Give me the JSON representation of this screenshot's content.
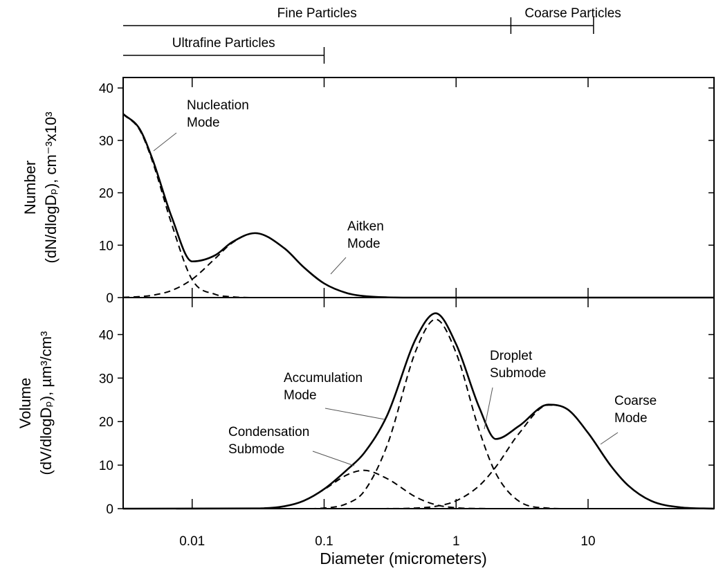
{
  "chart_data": [
    {
      "type": "line",
      "xscale": "log",
      "xlim": [
        0.003,
        90
      ],
      "ylim": [
        0,
        42
      ],
      "xticks": [
        0.01,
        0.1,
        1,
        10
      ],
      "yticks": [
        0,
        10,
        20,
        30,
        40
      ],
      "xtick_labels": false,
      "ylabel": [
        "Number",
        "(dN/dlogDₚ), cm⁻³x10³"
      ],
      "size_ranges": [
        {
          "label": "Fine Particles",
          "range": [
            0.003,
            2.6
          ]
        },
        {
          "label": "Coarse Particles",
          "range": [
            2.6,
            11
          ]
        },
        {
          "label": "Ultrafine Particles",
          "range": [
            0.003,
            0.1
          ]
        }
      ],
      "x": [
        0.003,
        0.004,
        0.005,
        0.007,
        0.01,
        0.015,
        0.02,
        0.03,
        0.05,
        0.07,
        0.1,
        0.15,
        0.2,
        0.3,
        0.5,
        1,
        90
      ],
      "series": [
        {
          "color": "#000000",
          "style": "solid",
          "values": [
            35.05,
            32.18,
            26.44,
            15.36,
            6.9,
            8.1,
            10.55,
            12.3,
            9.4,
            5.8,
            2.7,
            0.83,
            0.29,
            0.05,
            0,
            0,
            0
          ]
        },
        {
          "color": "#000000",
          "style": "dashed",
          "values": [
            35,
            32,
            26,
            14,
            3.4,
            0.6,
            0.15,
            0,
            0,
            0,
            0,
            0,
            0,
            0,
            0,
            0,
            0
          ]
        },
        {
          "color": "#000000",
          "style": "dashed",
          "values": [
            0.05,
            0.18,
            0.44,
            1.36,
            3.5,
            7.5,
            10.4,
            12.3,
            9.4,
            5.8,
            2.7,
            0.83,
            0.29,
            0.05,
            0,
            0,
            0
          ]
        }
      ],
      "annotations": [
        {
          "text": [
            "Nucleation",
            "Mode"
          ]
        },
        {
          "text": [
            "Aitken",
            "Mode"
          ]
        }
      ]
    },
    {
      "type": "line",
      "xscale": "log",
      "xlim": [
        0.003,
        90
      ],
      "ylim": [
        0,
        48.5
      ],
      "xticks": [
        0.01,
        0.1,
        1,
        10
      ],
      "yticks": [
        0,
        10,
        20,
        30,
        40
      ],
      "xtick_labels": true,
      "xlabel": "Diameter (micrometers)",
      "ylabel": [
        "Volume",
        "(dV/dlogDₚ), µm³/cm³"
      ],
      "x": [
        0.003,
        0.03,
        0.05,
        0.07,
        0.1,
        0.15,
        0.2,
        0.3,
        0.5,
        0.7,
        1,
        1.5,
        2,
        3,
        5,
        7,
        10,
        15,
        20,
        30,
        50,
        90
      ],
      "series": [
        {
          "color": "#000000",
          "style": "solid",
          "values": [
            0,
            0.05,
            0.55,
            1.8,
            4.5,
            9.0,
            12.7,
            21.4,
            39.3,
            44.9,
            37.8,
            23.2,
            16,
            19,
            23.9,
            22.8,
            17.4,
            9.7,
            5.4,
            1.8,
            0.3,
            0
          ]
        },
        {
          "color": "#000000",
          "style": "dashed",
          "values": [
            0,
            0.05,
            0.54,
            1.78,
            4.4,
            7.8,
            8.8,
            6.9,
            2.6,
            0.9,
            0.2,
            0.03,
            0,
            0,
            0,
            0,
            0,
            0,
            0,
            0,
            0,
            0
          ]
        },
        {
          "color": "#000000",
          "style": "dashed",
          "values": [
            0,
            0,
            0,
            0,
            0.13,
            1.2,
            3.9,
            14.5,
            36.6,
            43.5,
            35.8,
            17.9,
            8.1,
            1.7,
            0.12,
            0,
            0,
            0,
            0,
            0,
            0,
            0
          ]
        },
        {
          "color": "#000000",
          "style": "dashed",
          "values": [
            0,
            0,
            0,
            0,
            0,
            0,
            0,
            0.01,
            0.14,
            0.53,
            1.8,
            5.3,
            9.6,
            17.3,
            23.8,
            22.8,
            17.4,
            9.7,
            5.4,
            1.8,
            0.3,
            0
          ]
        }
      ],
      "annotations": [
        {
          "text": [
            "Accumulation",
            "Mode"
          ]
        },
        {
          "text": [
            "Droplet",
            "Submode"
          ]
        },
        {
          "text": [
            "Coarse",
            "Mode"
          ]
        },
        {
          "text": [
            "Condensation",
            "Submode"
          ]
        }
      ]
    }
  ]
}
